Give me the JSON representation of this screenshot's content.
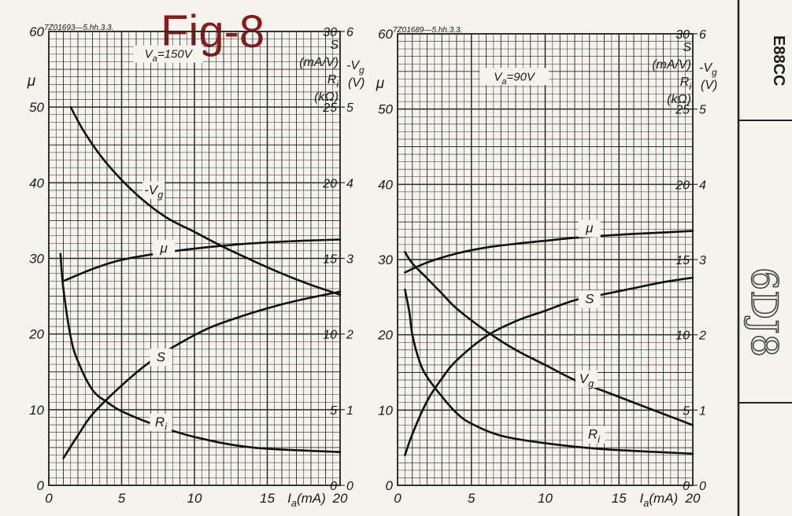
{
  "figure": {
    "title": "Fig-8",
    "tube_label": "E88CC",
    "handwriting": "6DJ8"
  },
  "colors": {
    "paper": "#f4f3ee",
    "grid": "#2a2a2a",
    "curve": "#111111",
    "title": "#8b1a1a"
  },
  "chart_data": [
    {
      "type": "line",
      "drawing_no": "7Z01693—5.hh.3.3.",
      "condition": "Va=150V",
      "x_label": "Ia(mA)",
      "xlim": [
        0,
        20
      ],
      "x_ticks": [
        0,
        5,
        10,
        15,
        20
      ],
      "left_axis": {
        "label": "μ",
        "lim": [
          0,
          60
        ],
        "ticks": [
          0,
          10,
          20,
          30,
          40,
          50,
          60
        ]
      },
      "right_axis_1": {
        "labels": [
          "S",
          "(mA/V)",
          "Ri",
          "(kΩ)"
        ],
        "lim": [
          0,
          30
        ],
        "ticks": [
          0,
          5,
          10,
          15,
          20,
          25,
          30
        ]
      },
      "right_axis_2": {
        "labels": [
          "-Vg",
          "(V)"
        ],
        "lim": [
          0,
          6
        ],
        "ticks": [
          0,
          1,
          2,
          3,
          4,
          5,
          6
        ]
      },
      "series": [
        {
          "name": "μ",
          "axis": "left",
          "x": [
            1,
            3,
            5,
            8,
            11,
            14,
            17,
            20
          ],
          "y": [
            27,
            28.6,
            29.8,
            30.8,
            31.5,
            32,
            32.3,
            32.5
          ]
        },
        {
          "name": "-Vg",
          "axis": "right_2",
          "x": [
            1.5,
            2.5,
            4,
            6,
            8,
            10,
            12,
            14,
            16,
            18,
            20
          ],
          "y": [
            5,
            4.65,
            4.25,
            3.85,
            3.55,
            3.35,
            3.15,
            2.97,
            2.8,
            2.65,
            2.52
          ]
        },
        {
          "name": "S",
          "axis": "right_1",
          "x": [
            1,
            2,
            3,
            5,
            7,
            9,
            11,
            13,
            15,
            17,
            20
          ],
          "y": [
            1.8,
            3.3,
            4.7,
            6.6,
            8.2,
            9.4,
            10.4,
            11.1,
            11.7,
            12.2,
            12.8
          ]
        },
        {
          "name": "Ri",
          "axis": "right_1",
          "x": [
            0.8,
            1,
            1.5,
            2,
            3,
            4,
            5,
            7,
            10,
            14,
            20
          ],
          "y": [
            15.3,
            13,
            9.8,
            8.2,
            6.3,
            5.5,
            4.9,
            4.1,
            3.2,
            2.5,
            2.2
          ]
        }
      ],
      "annotations": [
        "Va=150V",
        "-Vg",
        "μ",
        "S",
        "Ri"
      ]
    },
    {
      "type": "line",
      "drawing_no": "7Z01689—5.hh.3.3.",
      "condition": "Va=90V",
      "x_label": "Ia(mA)",
      "xlim": [
        0,
        20
      ],
      "x_ticks": [
        0,
        5,
        10,
        15,
        20
      ],
      "left_axis": {
        "label": "μ",
        "lim": [
          0,
          60
        ],
        "ticks": [
          0,
          10,
          20,
          30,
          40,
          50,
          60
        ]
      },
      "right_axis_1": {
        "labels": [
          "S",
          "(mA/V)",
          "Ri",
          "(kΩ)"
        ],
        "lim": [
          0,
          30
        ],
        "ticks": [
          0,
          5,
          10,
          15,
          20,
          25,
          30
        ]
      },
      "right_axis_2": {
        "labels": [
          "-Vg",
          "(V)"
        ],
        "lim": [
          0,
          6
        ],
        "ticks": [
          0,
          1,
          2,
          3,
          4,
          5,
          6
        ]
      },
      "series": [
        {
          "name": "μ",
          "axis": "left",
          "x": [
            0.5,
            2,
            4,
            6,
            8,
            10,
            12,
            15,
            18,
            20
          ],
          "y": [
            28.3,
            29.6,
            30.8,
            31.6,
            32.1,
            32.5,
            32.9,
            33.3,
            33.6,
            33.8
          ]
        },
        {
          "name": "Vg",
          "axis": "right_2",
          "x": [
            0.5,
            1,
            2,
            3,
            4,
            6,
            8,
            10,
            12,
            14,
            16,
            18,
            20
          ],
          "y": [
            3.1,
            2.95,
            2.75,
            2.55,
            2.35,
            2.05,
            1.8,
            1.6,
            1.4,
            1.25,
            1.1,
            0.95,
            0.8
          ]
        },
        {
          "name": "S",
          "axis": "right_1",
          "x": [
            0.5,
            1,
            2,
            3,
            4,
            6,
            8,
            10,
            12,
            14,
            16,
            18,
            20
          ],
          "y": [
            2,
            3.4,
            5.6,
            7.1,
            8.3,
            9.9,
            10.9,
            11.6,
            12.3,
            12.7,
            13.1,
            13.5,
            13.8
          ]
        },
        {
          "name": "Ri",
          "axis": "right_1",
          "x": [
            0.5,
            0.8,
            1,
            1.5,
            2,
            3,
            4,
            5,
            7,
            10,
            14,
            20
          ],
          "y": [
            13,
            11.5,
            10,
            8.2,
            7.2,
            5.9,
            4.8,
            4.1,
            3.3,
            2.8,
            2.4,
            2.1
          ]
        }
      ],
      "annotations": [
        "Va=90V",
        "Vg",
        "μ",
        "S",
        "Ri"
      ]
    }
  ]
}
